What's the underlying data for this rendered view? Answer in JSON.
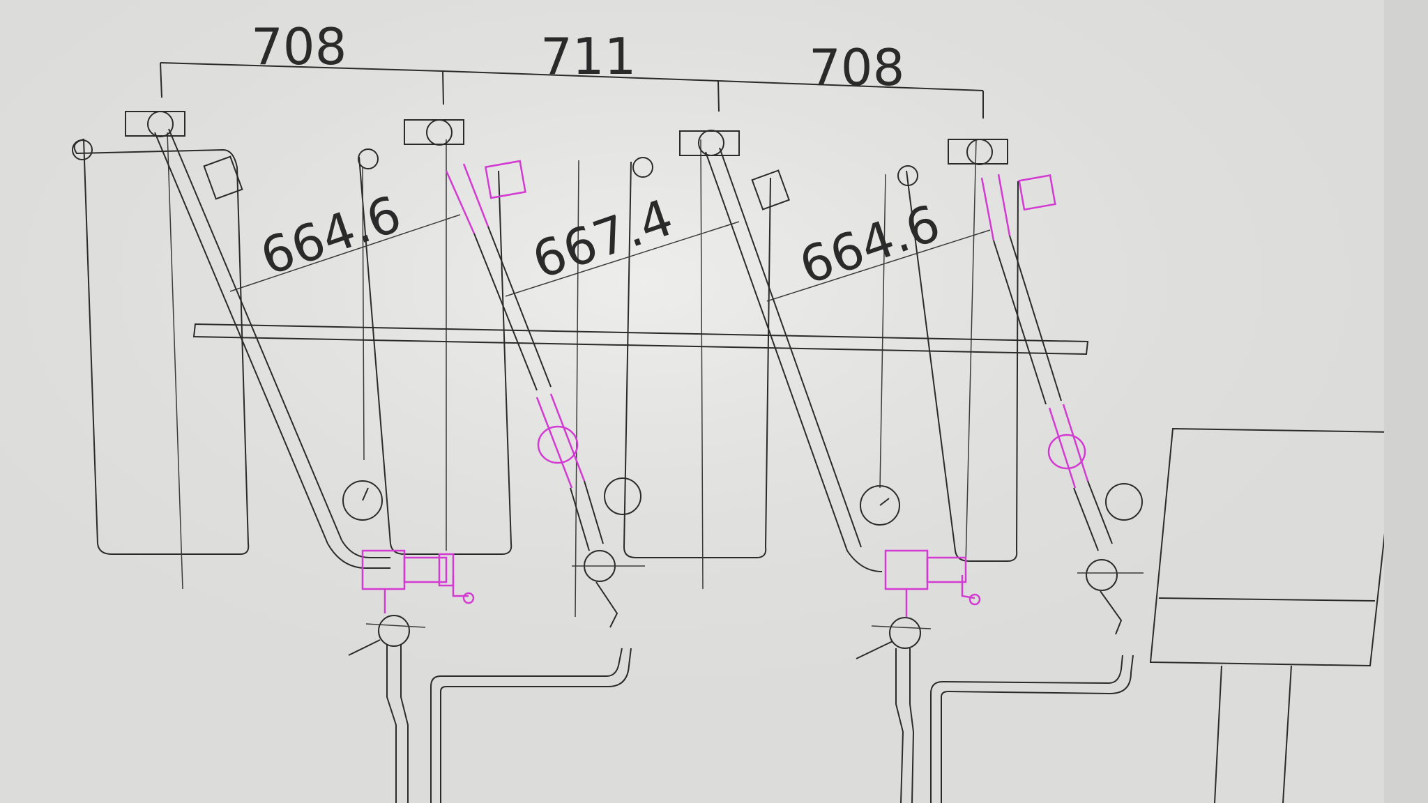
{
  "drawing": {
    "background": "#dcdcda",
    "line_color": "#2a2a2a",
    "highlight_color": "#d23ad2",
    "dimensions": {
      "top": [
        "708",
        "711",
        "708"
      ],
      "diagonal": [
        "664.6",
        "667.4",
        "664.6"
      ]
    }
  }
}
